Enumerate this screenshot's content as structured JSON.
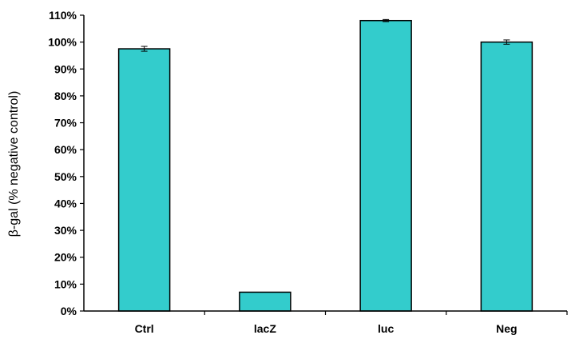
{
  "chart_data": {
    "type": "bar",
    "categories": [
      "Ctrl",
      "lacZ",
      "luc",
      "Neg"
    ],
    "values": [
      97.5,
      7.0,
      108.0,
      100.0
    ],
    "errors": [
      0.9,
      0,
      0.4,
      0.8
    ],
    "ylabel": "β-gal (% negative control)",
    "xlabel": "",
    "title": "",
    "ylim": [
      0,
      110
    ],
    "yticks": [
      "0%",
      "10%",
      "20%",
      "30%",
      "40%",
      "50%",
      "60%",
      "70%",
      "80%",
      "90%",
      "100%",
      "110%"
    ],
    "bar_color": "#33cccc",
    "bar_edge_color": "#000000",
    "grid": false,
    "legend": "none"
  }
}
